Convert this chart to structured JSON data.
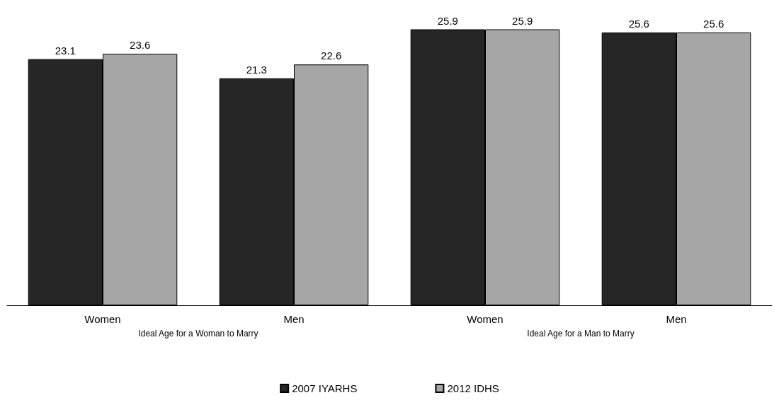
{
  "chart_data": {
    "type": "bar",
    "categories": [
      "Women",
      "Men",
      "Women",
      "Men"
    ],
    "series": [
      {
        "name": "2007 IYARHS",
        "color": "#262626",
        "values": [
          23.1,
          21.3,
          25.9,
          25.6
        ]
      },
      {
        "name": "2012 IDHS",
        "color": "#a6a6a6",
        "values": [
          23.6,
          22.6,
          25.9,
          25.6
        ]
      }
    ],
    "ylim": [
      0,
      26
    ],
    "data_labels": true,
    "legend": "bottom",
    "grid": false,
    "tick_labels": "x",
    "annotations": [
      "Ideal Age for a Woman to Marry",
      "Ideal Age for a Man to Marry"
    ]
  }
}
